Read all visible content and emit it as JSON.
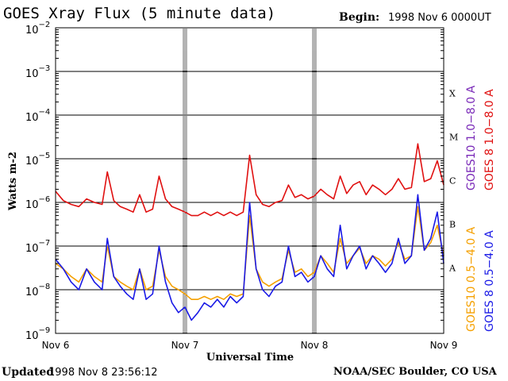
{
  "header": {
    "title": "GOES Xray Flux (5 minute data)",
    "begin_label": "Begin:",
    "begin_value": "1998 Nov 6 0000UT"
  },
  "footer": {
    "updated_label": "Updated",
    "updated_value": "1998 Nov  8 23:56:12",
    "credit": "NOAA/SEC Boulder, CO USA"
  },
  "colors": {
    "goes10_long": "#7a2ab8",
    "goes8_long": "#e01010",
    "goes10_short": "#f5a000",
    "goes8_short": "#1a1ae6"
  },
  "chart_data": {
    "type": "line",
    "title": "GOES Xray Flux (5 minute data)",
    "xlabel": "Universal Time",
    "ylabel": "Watts m-2",
    "y_scale": "log",
    "ylim": [
      1e-09,
      0.01
    ],
    "x_range_days": [
      0,
      3
    ],
    "x_ticks": [
      {
        "day": 0,
        "label": "Nov 6"
      },
      {
        "day": 1,
        "label": "Nov 7"
      },
      {
        "day": 2,
        "label": "Nov 8"
      },
      {
        "day": 3,
        "label": "Nov 9"
      }
    ],
    "y_ticks": [
      {
        "exp": -2,
        "mant": "10",
        "sup": "−2"
      },
      {
        "exp": -3,
        "mant": "10",
        "sup": "−3"
      },
      {
        "exp": -4,
        "mant": "10",
        "sup": "−4"
      },
      {
        "exp": -5,
        "mant": "10",
        "sup": "−5"
      },
      {
        "exp": -6,
        "mant": "10",
        "sup": "−6"
      },
      {
        "exp": -7,
        "mant": "10",
        "sup": "−7"
      },
      {
        "exp": -8,
        "mant": "10",
        "sup": "−8"
      },
      {
        "exp": -9,
        "mant": "10",
        "sup": "−9"
      }
    ],
    "flare_classes": [
      {
        "label": "X",
        "exp": -3.5
      },
      {
        "label": "M",
        "exp": -4.5
      },
      {
        "label": "C",
        "exp": -5.5
      },
      {
        "label": "B",
        "exp": -6.5
      },
      {
        "label": "A",
        "exp": -7.5
      }
    ],
    "legend_right": [
      {
        "label": "GOES10 1.0−8.0 A",
        "color": "#7a2ab8"
      },
      {
        "label": "GOES 8 1.0−8.0 A",
        "color": "#e01010"
      }
    ],
    "legend_bottom": [
      {
        "label": "GOES10 0.5−4.0 A",
        "color": "#f5a000"
      },
      {
        "label": "GOES 8 0.5−4.0 A",
        "color": "#1a1ae6"
      }
    ],
    "series": [
      {
        "name": "GOES 8 1.0−8.0 A",
        "color": "#e01010",
        "x": [
          0,
          0.06,
          0.12,
          0.18,
          0.24,
          0.3,
          0.36,
          0.4,
          0.45,
          0.5,
          0.55,
          0.6,
          0.65,
          0.7,
          0.75,
          0.8,
          0.85,
          0.9,
          0.95,
          1.0,
          1.05,
          1.1,
          1.15,
          1.2,
          1.25,
          1.3,
          1.35,
          1.4,
          1.45,
          1.5,
          1.55,
          1.6,
          1.65,
          1.7,
          1.75,
          1.8,
          1.85,
          1.9,
          1.95,
          2.0,
          2.05,
          2.1,
          2.15,
          2.2,
          2.25,
          2.3,
          2.35,
          2.4,
          2.45,
          2.5,
          2.55,
          2.6,
          2.65,
          2.7,
          2.75,
          2.8,
          2.85,
          2.9,
          2.95,
          3.0
        ],
        "y": [
          1.8e-06,
          1.1e-06,
          9e-07,
          8e-07,
          1.2e-06,
          1e-06,
          9e-07,
          5e-06,
          1.1e-06,
          8e-07,
          7e-07,
          6e-07,
          1.5e-06,
          6e-07,
          7e-07,
          4e-06,
          1.2e-06,
          8e-07,
          7e-07,
          6e-07,
          5e-07,
          5e-07,
          6e-07,
          5e-07,
          6e-07,
          5e-07,
          6e-07,
          5e-07,
          6e-07,
          1.2e-05,
          1.5e-06,
          9e-07,
          8e-07,
          1e-06,
          1.1e-06,
          2.5e-06,
          1.3e-06,
          1.5e-06,
          1.2e-06,
          1.4e-06,
          2e-06,
          1.5e-06,
          1.2e-06,
          4e-06,
          1.6e-06,
          2.5e-06,
          3e-06,
          1.5e-06,
          2.5e-06,
          2e-06,
          1.5e-06,
          2e-06,
          3.5e-06,
          2e-06,
          2.2e-06,
          2.2e-05,
          3e-06,
          3.5e-06,
          9e-06,
          2.5e-06
        ]
      },
      {
        "name": "GOES10 0.5−4.0 A",
        "color": "#f5a000",
        "x": [
          0,
          0.06,
          0.12,
          0.18,
          0.24,
          0.3,
          0.36,
          0.4,
          0.45,
          0.5,
          0.55,
          0.6,
          0.65,
          0.7,
          0.75,
          0.8,
          0.85,
          0.9,
          0.95,
          1.0,
          1.05,
          1.1,
          1.15,
          1.2,
          1.25,
          1.3,
          1.35,
          1.4,
          1.45,
          1.5,
          1.55,
          1.6,
          1.65,
          1.7,
          1.75,
          1.8,
          1.85,
          1.9,
          1.95,
          2.0,
          2.05,
          2.1,
          2.15,
          2.2,
          2.25,
          2.3,
          2.35,
          2.4,
          2.45,
          2.5,
          2.55,
          2.6,
          2.65,
          2.7,
          2.75,
          2.8,
          2.85,
          2.9,
          2.95,
          3.0
        ],
        "y": [
          4e-08,
          3e-08,
          2e-08,
          1.5e-08,
          3e-08,
          2e-08,
          1.5e-08,
          1e-07,
          2e-08,
          1.5e-08,
          1.2e-08,
          1e-08,
          3e-08,
          1e-08,
          1.2e-08,
          8e-08,
          2e-08,
          1.2e-08,
          1e-08,
          8e-09,
          6e-09,
          6e-09,
          7e-09,
          6e-09,
          7e-09,
          6e-09,
          8e-09,
          7e-09,
          8e-09,
          5e-07,
          3e-08,
          1.5e-08,
          1.2e-08,
          1.5e-08,
          1.8e-08,
          8e-08,
          2.5e-08,
          3e-08,
          2e-08,
          2.5e-08,
          6e-08,
          4e-08,
          2.5e-08,
          1.5e-07,
          4e-08,
          6e-08,
          9e-08,
          4e-08,
          6e-08,
          5e-08,
          3.5e-08,
          5e-08,
          1.2e-07,
          5e-08,
          6e-08,
          8e-07,
          8e-08,
          1.2e-07,
          3e-07,
          6e-08
        ]
      },
      {
        "name": "GOES 8 0.5−4.0 A",
        "color": "#1a1ae6",
        "x": [
          0,
          0.06,
          0.12,
          0.18,
          0.24,
          0.3,
          0.36,
          0.4,
          0.45,
          0.5,
          0.55,
          0.6,
          0.65,
          0.7,
          0.75,
          0.8,
          0.85,
          0.9,
          0.95,
          1.0,
          1.05,
          1.1,
          1.15,
          1.2,
          1.25,
          1.3,
          1.35,
          1.4,
          1.45,
          1.5,
          1.55,
          1.6,
          1.65,
          1.7,
          1.75,
          1.8,
          1.85,
          1.9,
          1.95,
          2.0,
          2.05,
          2.1,
          2.15,
          2.2,
          2.25,
          2.3,
          2.35,
          2.4,
          2.45,
          2.5,
          2.55,
          2.6,
          2.65,
          2.7,
          2.75,
          2.8,
          2.85,
          2.9,
          2.95,
          3.0
        ],
        "y": [
          5e-08,
          3e-08,
          1.5e-08,
          1e-08,
          3e-08,
          1.5e-08,
          1e-08,
          1.5e-07,
          2e-08,
          1.2e-08,
          8e-09,
          6e-09,
          3e-08,
          6e-09,
          8e-09,
          1e-07,
          1.5e-08,
          5e-09,
          3e-09,
          4e-09,
          2e-09,
          3e-09,
          5e-09,
          4e-09,
          6e-09,
          4e-09,
          7e-09,
          5e-09,
          7e-09,
          1e-06,
          3e-08,
          1e-08,
          7e-09,
          1.2e-08,
          1.5e-08,
          1e-07,
          2e-08,
          2.5e-08,
          1.5e-08,
          2e-08,
          6e-08,
          3e-08,
          2e-08,
          3e-07,
          3e-08,
          6e-08,
          1e-07,
          3e-08,
          6e-08,
          4e-08,
          2.5e-08,
          4e-08,
          1.5e-07,
          4e-08,
          6e-08,
          1.5e-06,
          8e-08,
          1.5e-07,
          6e-07,
          4e-08
        ]
      }
    ]
  }
}
